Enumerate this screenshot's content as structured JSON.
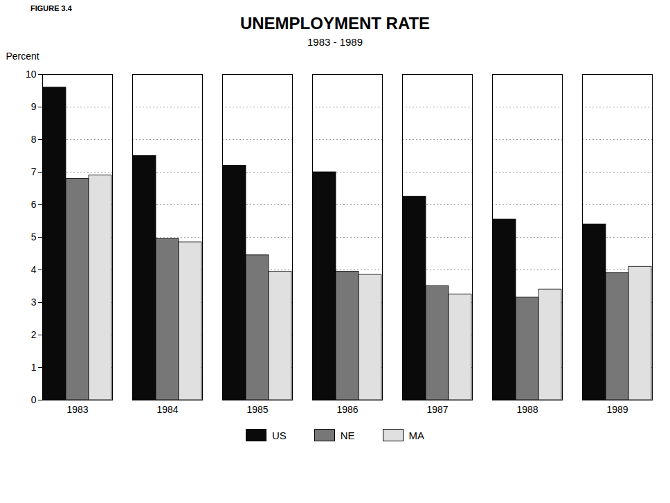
{
  "chart_data": {
    "type": "bar",
    "title": "UNEMPLOYMENT RATE",
    "subtitle": "1983 - 1989",
    "annotations": [
      "FIGURE 3.4"
    ],
    "ylabel": "Percent",
    "categories": [
      "1983",
      "1984",
      "1985",
      "1986",
      "1987",
      "1988",
      "1989"
    ],
    "series": [
      {
        "name": "US",
        "color": "#0a0a0a",
        "values": [
          9.6,
          7.5,
          7.2,
          7.0,
          6.25,
          5.55,
          5.4
        ]
      },
      {
        "name": "NE",
        "color": "#777777",
        "values": [
          6.8,
          4.95,
          4.45,
          3.95,
          3.5,
          3.15,
          3.9
        ]
      },
      {
        "name": "MA",
        "color": "#e0e0e0",
        "values": [
          6.9,
          4.85,
          3.95,
          3.85,
          3.25,
          3.4,
          4.1
        ]
      }
    ],
    "ylim": [
      0,
      10
    ],
    "yticks": [
      0,
      1,
      2,
      3,
      4,
      5,
      6,
      7,
      8,
      9,
      10
    ],
    "grid": true,
    "legend": "bottom"
  }
}
